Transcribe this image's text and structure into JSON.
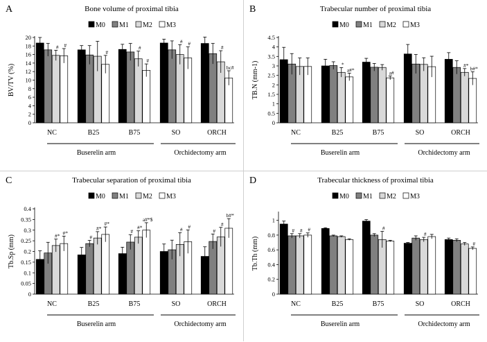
{
  "common": {
    "legend": [
      "M0",
      "M1",
      "M2",
      "M3"
    ],
    "groups": [
      "NC",
      "B25",
      "B75",
      "SO",
      "ORCH"
    ],
    "arms": [
      "Buserelin arm",
      "Orchidectomy arm"
    ],
    "colors": [
      "#000000",
      "#808080",
      "#d9d9d9",
      "#ffffff"
    ]
  },
  "chart_data": [
    {
      "type": "bar",
      "panel_letter": "A",
      "title": "Bone volume of proximal tibia",
      "ylabel": "BV/TV (%)",
      "ylim": [
        0,
        20
      ],
      "yticks": [
        "0",
        "2",
        "4",
        "6",
        "8",
        "10",
        "12",
        "14",
        "16",
        "18",
        "20"
      ],
      "ytick_values": [
        0,
        2,
        4,
        6,
        8,
        10,
        12,
        14,
        16,
        18,
        20
      ],
      "categories": [
        "NC",
        "B25",
        "B75",
        "SO",
        "ORCH"
      ],
      "series": [
        {
          "name": "M0",
          "values": [
            18.7,
            17.1,
            17.2,
            18.7,
            18.6
          ],
          "errors": [
            1.3,
            1.0,
            1.2,
            0.9,
            1.5
          ]
        },
        {
          "name": "M1",
          "values": [
            17.1,
            15.9,
            16.6,
            17.1,
            16.2
          ],
          "errors": [
            1.5,
            2.2,
            2.0,
            2.1,
            2.4
          ]
        },
        {
          "name": "M2",
          "values": [
            15.8,
            15.6,
            15.0,
            16.0,
            14.3
          ],
          "errors": [
            1.2,
            3.5,
            1.8,
            2.3,
            2.6
          ]
        },
        {
          "name": "M3",
          "values": [
            15.7,
            13.7,
            12.3,
            15.2,
            10.5
          ],
          "errors": [
            1.7,
            2.1,
            1.5,
            2.6,
            1.7
          ]
        }
      ],
      "annotations": [
        {
          "group": 0,
          "series": 2,
          "text": "#"
        },
        {
          "group": 0,
          "series": 3,
          "text": "#"
        },
        {
          "group": 1,
          "series": 3,
          "text": "#"
        },
        {
          "group": 2,
          "series": 2,
          "text": "#"
        },
        {
          "group": 2,
          "series": 3,
          "text": "#"
        },
        {
          "group": 3,
          "series": 2,
          "text": "#"
        },
        {
          "group": 3,
          "series": 3,
          "text": "#"
        },
        {
          "group": 4,
          "series": 2,
          "text": "#"
        },
        {
          "group": 4,
          "series": 3,
          "text": "bc#"
        }
      ]
    },
    {
      "type": "bar",
      "panel_letter": "B",
      "title": "Trabecular number of proximal tibia",
      "ylabel": "TB.N (mm-1)",
      "ylim": [
        0,
        4.5
      ],
      "yticks": [
        "0",
        "0.5",
        "1",
        "1.5",
        "2",
        "2.5",
        "3",
        "3.5",
        "4",
        "4.5"
      ],
      "ytick_values": [
        0,
        0.5,
        1,
        1.5,
        2,
        2.5,
        3,
        3.5,
        4,
        4.5
      ],
      "categories": [
        "NC",
        "B25",
        "B75",
        "SO",
        "ORCH"
      ],
      "series": [
        {
          "name": "M0",
          "values": [
            3.33,
            3.0,
            3.2,
            3.63,
            3.35
          ],
          "errors": [
            0.65,
            0.35,
            0.2,
            0.5,
            0.35
          ]
        },
        {
          "name": "M1",
          "values": [
            3.1,
            3.02,
            2.93,
            3.1,
            2.92
          ],
          "errors": [
            0.55,
            0.2,
            0.2,
            0.5,
            0.35
          ]
        },
        {
          "name": "M2",
          "values": [
            2.97,
            2.66,
            2.92,
            3.08,
            2.66
          ],
          "errors": [
            0.45,
            0.25,
            0.15,
            0.35,
            0.2
          ]
        },
        {
          "name": "M3",
          "values": [
            2.97,
            2.42,
            2.37,
            2.96,
            2.34
          ],
          "errors": [
            0.45,
            0.2,
            0.1,
            0.55,
            0.35
          ]
        }
      ],
      "annotations": [
        {
          "group": 1,
          "series": 2,
          "text": "*"
        },
        {
          "group": 1,
          "series": 3,
          "text": "a#*"
        },
        {
          "group": 2,
          "series": 3,
          "text": "a#"
        },
        {
          "group": 4,
          "series": 2,
          "text": "#*"
        },
        {
          "group": 4,
          "series": 3,
          "text": "b#*"
        }
      ]
    },
    {
      "type": "bar",
      "panel_letter": "C",
      "title": "Trabecular separation of proximal tibia",
      "ylabel": "Tb.Sp (mm)",
      "ylim": [
        0,
        0.4
      ],
      "yticks": [
        "0",
        "0.05",
        "0.1",
        "0.15",
        "0.2",
        "0.25",
        "0.3",
        "0.35",
        "0.4"
      ],
      "ytick_values": [
        0,
        0.05,
        0.1,
        0.15,
        0.2,
        0.25,
        0.3,
        0.35,
        0.4
      ],
      "categories": [
        "NC",
        "B25",
        "B75",
        "SO",
        "ORCH"
      ],
      "series": [
        {
          "name": "M0",
          "values": [
            0.163,
            0.184,
            0.19,
            0.2,
            0.177
          ],
          "errors": [
            0.04,
            0.035,
            0.03,
            0.035,
            0.045
          ]
        },
        {
          "name": "M1",
          "values": [
            0.193,
            0.237,
            0.244,
            0.208,
            0.247
          ],
          "errors": [
            0.05,
            0.015,
            0.035,
            0.045,
            0.035
          ]
        },
        {
          "name": "M2",
          "values": [
            0.228,
            0.263,
            0.267,
            0.233,
            0.268
          ],
          "errors": [
            0.03,
            0.03,
            0.03,
            0.055,
            0.045
          ]
        },
        {
          "name": "M3",
          "values": [
            0.237,
            0.28,
            0.3,
            0.246,
            0.309
          ],
          "errors": [
            0.035,
            0.035,
            0.035,
            0.055,
            0.045
          ]
        }
      ],
      "annotations": [
        {
          "group": 0,
          "series": 2,
          "text": "#*"
        },
        {
          "group": 0,
          "series": 3,
          "text": "#*"
        },
        {
          "group": 1,
          "series": 1,
          "text": "#"
        },
        {
          "group": 1,
          "series": 2,
          "text": "#*"
        },
        {
          "group": 1,
          "series": 3,
          "text": "#*"
        },
        {
          "group": 2,
          "series": 1,
          "text": "#"
        },
        {
          "group": 2,
          "series": 2,
          "text": "#*"
        },
        {
          "group": 2,
          "series": 3,
          "text": "a#*$"
        },
        {
          "group": 3,
          "series": 2,
          "text": "#"
        },
        {
          "group": 3,
          "series": 3,
          "text": "#"
        },
        {
          "group": 4,
          "series": 1,
          "text": "#"
        },
        {
          "group": 4,
          "series": 2,
          "text": "#"
        },
        {
          "group": 4,
          "series": 3,
          "text": "b#*"
        }
      ]
    },
    {
      "type": "bar",
      "panel_letter": "D",
      "title": "Trabecular thickness of proximal tibia",
      "ylabel": "Tb.Th (mm)",
      "ylim": [
        0,
        1.1
      ],
      "yticks": [
        "0",
        "0.2",
        "0.4",
        "0.6",
        "0.8",
        "1"
      ],
      "ytick_values": [
        0,
        0.2,
        0.4,
        0.6,
        0.8,
        1
      ],
      "categories": [
        "NC",
        "B25",
        "B75",
        "SO",
        "ORCH"
      ],
      "series": [
        {
          "name": "M0",
          "values": [
            0.95,
            0.89,
            0.99,
            0.69,
            0.74
          ],
          "errors": [
            0.04,
            0.01,
            0.02,
            0.01,
            0.02
          ]
        },
        {
          "name": "M1",
          "values": [
            0.79,
            0.79,
            0.8,
            0.76,
            0.73
          ],
          "errors": [
            0.03,
            0.01,
            0.02,
            0.03,
            0.02
          ]
        },
        {
          "name": "M2",
          "values": [
            0.79,
            0.78,
            0.74,
            0.74,
            0.68
          ],
          "errors": [
            0.03,
            0.01,
            0.11,
            0.03,
            0.02
          ]
        },
        {
          "name": "M3",
          "values": [
            0.8,
            0.74,
            0.72,
            0.78,
            0.62
          ],
          "errors": [
            0.03,
            0.01,
            0.01,
            0.03,
            0.02
          ]
        }
      ],
      "annotations": [
        {
          "group": 0,
          "series": 1,
          "text": "#"
        },
        {
          "group": 0,
          "series": 2,
          "text": "#"
        },
        {
          "group": 0,
          "series": 3,
          "text": "#"
        },
        {
          "group": 2,
          "series": 2,
          "text": "#"
        },
        {
          "group": 3,
          "series": 2,
          "text": "#"
        },
        {
          "group": 4,
          "series": 3,
          "text": "#"
        }
      ]
    }
  ]
}
